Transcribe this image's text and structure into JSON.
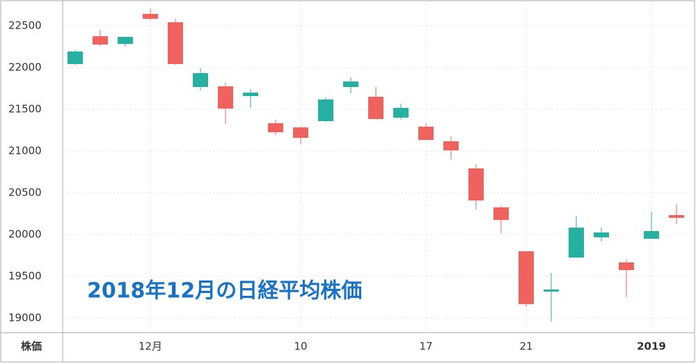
{
  "chart_data": {
    "type": "candlestick",
    "annotation": "2018年12月の日経平均株価",
    "y_label": "株価",
    "categories": [
      null,
      null,
      null,
      "12月",
      null,
      null,
      null,
      null,
      null,
      "10",
      null,
      null,
      null,
      null,
      "17",
      null,
      null,
      null,
      "21",
      null,
      null,
      null,
      null,
      "2019",
      null
    ],
    "open": [
      22042,
      22375,
      22283,
      22642,
      22542,
      21767,
      21775,
      21658,
      21333,
      21283,
      21358,
      21767,
      21650,
      21400,
      21292,
      21117,
      20792,
      20325,
      19800,
      19317,
      19725,
      19967,
      19667,
      19950,
      20233
    ],
    "high": [
      22210,
      22450,
      22370,
      22708,
      22583,
      21992,
      21817,
      21742,
      21375,
      21290,
      21642,
      21883,
      21767,
      21567,
      21333,
      21175,
      20842,
      20342,
      19800,
      19542,
      20225,
      20083,
      19700,
      20275,
      20358
    ],
    "low": [
      22030,
      22258,
      22250,
      22570,
      22030,
      21725,
      21325,
      21517,
      21192,
      21083,
      21350,
      21692,
      21380,
      21375,
      21130,
      20900,
      20300,
      20017,
      19133,
      18958,
      19720,
      19917,
      19250,
      19945,
      20125
    ],
    "close": [
      22192,
      22275,
      22367,
      22583,
      22042,
      21933,
      21508,
      21700,
      21225,
      21158,
      21617,
      21833,
      21383,
      21517,
      21133,
      21008,
      20408,
      20175,
      19167,
      19342,
      20083,
      20025,
      19575,
      20042,
      20200
    ],
    "up_color": "#26b0a1",
    "down_color": "#f0625e",
    "ylim": [
      18825,
      22767
    ],
    "yticks": [
      19000,
      19500,
      20000,
      20500,
      21000,
      21500,
      22000,
      22500
    ],
    "grid": true
  }
}
